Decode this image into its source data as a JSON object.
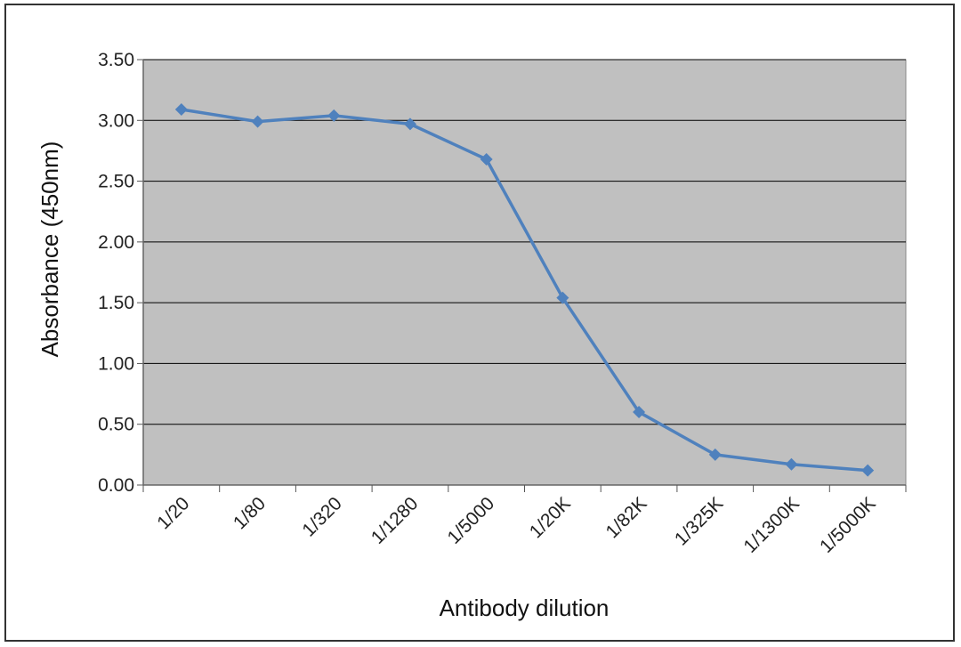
{
  "chart_data": {
    "type": "line",
    "title": "",
    "xlabel": "Antibody dilution",
    "ylabel": "Absorbance (450nm)",
    "categories": [
      "1/20",
      "1/80",
      "1/320",
      "1/1280",
      "1/5000",
      "1/20K",
      "1/82K",
      "1/325K",
      "1/1300K",
      "1/5000K"
    ],
    "series": [
      {
        "values": [
          3.09,
          2.99,
          3.04,
          2.97,
          2.68,
          1.54,
          0.6,
          0.25,
          0.17,
          0.12
        ]
      }
    ],
    "ylim": [
      0,
      3.5
    ],
    "yticks": [
      "0.00",
      "0.50",
      "1.00",
      "1.50",
      "2.00",
      "2.50",
      "3.00",
      "3.50"
    ],
    "grid": true,
    "colors": {
      "plot_background": "#c0c0c0",
      "line": "#4f81bd",
      "gridline": "#000000"
    }
  }
}
